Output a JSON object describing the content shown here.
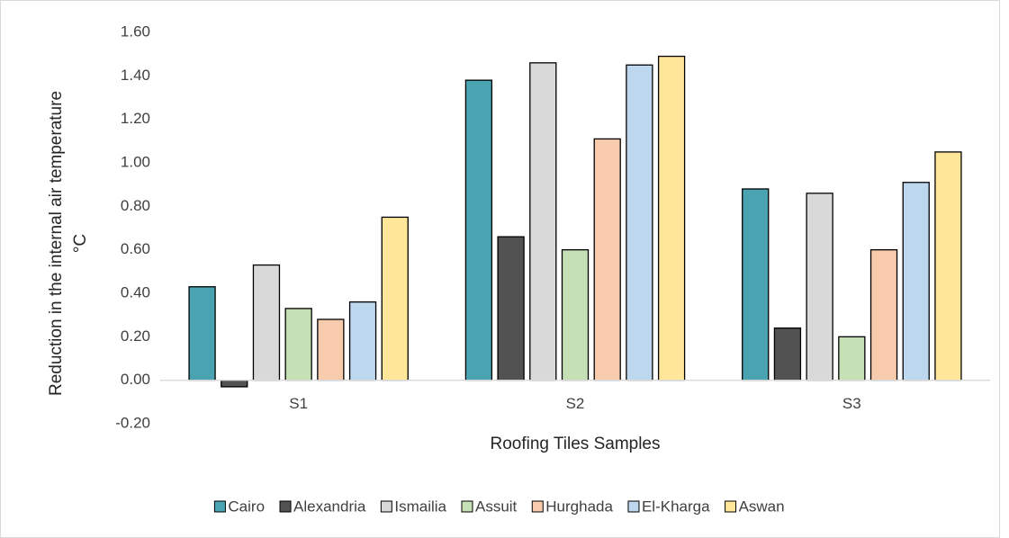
{
  "chart_data": {
    "type": "bar",
    "ylabel": [
      "Reduction in the internal air temperature",
      "°C"
    ],
    "xlabel": "Roofing Tiles Samples",
    "categories": [
      "S1",
      "S2",
      "S3"
    ],
    "series": [
      {
        "name": "Cairo",
        "color": "#4aa3b0",
        "values": [
          0.43,
          1.38,
          0.88
        ]
      },
      {
        "name": "Alexandria",
        "color": "#525252",
        "values": [
          -0.03,
          0.66,
          0.24
        ]
      },
      {
        "name": "Ismailia",
        "color": "#d9d9d9",
        "values": [
          0.53,
          1.46,
          0.86
        ]
      },
      {
        "name": "Assuit",
        "color": "#c5e0b4",
        "values": [
          0.33,
          0.6,
          0.2
        ]
      },
      {
        "name": "Hurghada",
        "color": "#f8cbad",
        "values": [
          0.28,
          1.11,
          0.6
        ]
      },
      {
        "name": "El-Kharga",
        "color": "#bdd7ee",
        "values": [
          0.36,
          1.45,
          0.91
        ]
      },
      {
        "name": "Aswan",
        "color": "#ffe699",
        "values": [
          0.75,
          1.49,
          1.05
        ]
      }
    ],
    "ylim": [
      -0.2,
      1.6
    ],
    "yticks": [
      {
        "value": -0.2,
        "label": "-0.20"
      },
      {
        "value": 0,
        "label": "0.00"
      },
      {
        "value": 0.2,
        "label": "0.20"
      },
      {
        "value": 0.4,
        "label": "0.40"
      },
      {
        "value": 0.6,
        "label": "0.60"
      },
      {
        "value": 0.8,
        "label": "0.80"
      },
      {
        "value": 1.0,
        "label": "1.00"
      },
      {
        "value": 1.2,
        "label": "1.20"
      },
      {
        "value": 1.4,
        "label": "1.40"
      },
      {
        "value": 1.6,
        "label": "1.60"
      }
    ],
    "grid": false,
    "legend": "bottom"
  }
}
